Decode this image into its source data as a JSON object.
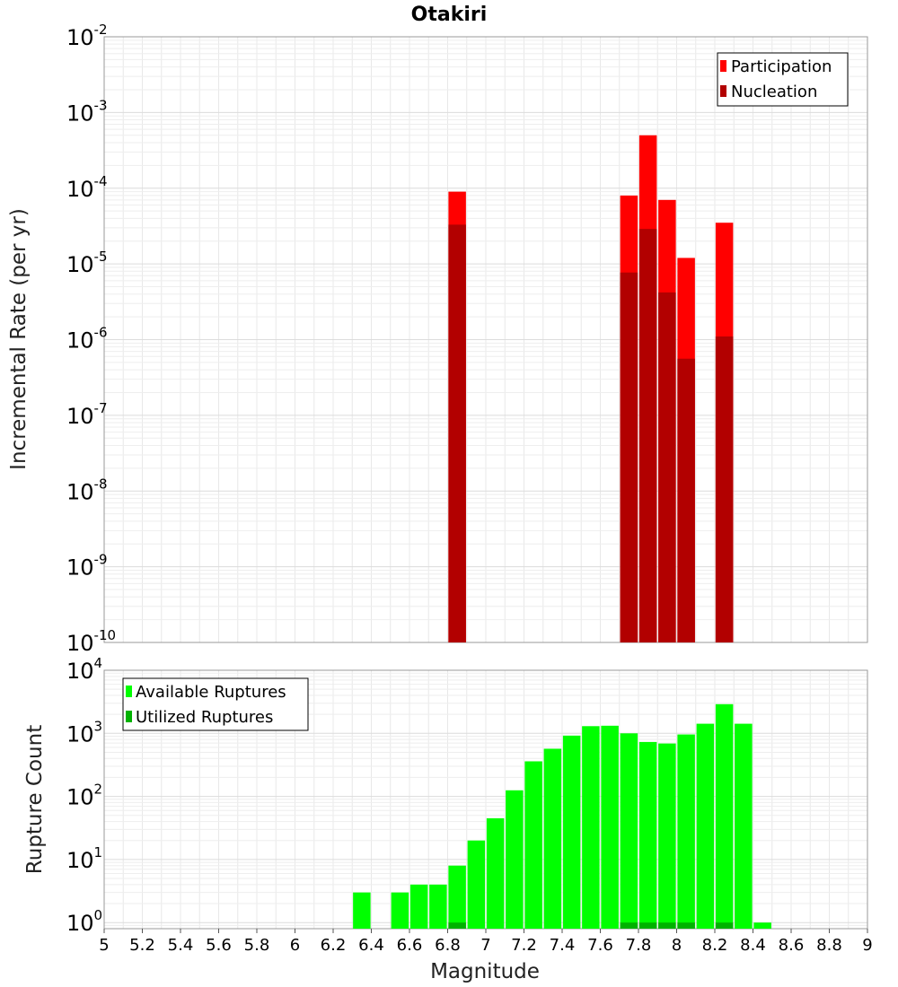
{
  "chart_data": [
    {
      "type": "bar",
      "title": "Otakiri",
      "xlabel": "",
      "ylabel": "Incremental Rate (per yr)",
      "yscale": "log",
      "ylim": [
        1e-10,
        0.01
      ],
      "xlim": [
        5,
        9
      ],
      "ytick_bases": [
        "10",
        "10",
        "10",
        "10",
        "10",
        "10",
        "10",
        "10",
        "10"
      ],
      "ytick_exponents": [
        "-2",
        "-3",
        "-4",
        "-5",
        "-6",
        "-7",
        "-8",
        "-9",
        "-10"
      ],
      "ytick_values": [
        0.01,
        0.001,
        0.0001,
        1e-05,
        1e-06,
        1e-07,
        1e-08,
        1e-09,
        1e-10
      ],
      "grid": true,
      "legend_position": "top-right",
      "series": [
        {
          "name": "Participation",
          "color": "#ff0000",
          "x": [
            6.85,
            7.75,
            7.85,
            7.95,
            8.05,
            8.25
          ],
          "values": [
            9e-05,
            8e-05,
            0.0005,
            7e-05,
            1.2e-05,
            3.5e-05
          ]
        },
        {
          "name": "Nucleation",
          "color": "#b20000",
          "x": [
            6.85,
            7.75,
            7.85,
            7.95,
            8.05,
            8.25
          ],
          "values": [
            3.3e-05,
            7.7e-06,
            2.9e-05,
            4.2e-06,
            5.6e-07,
            1.1e-06
          ]
        }
      ]
    },
    {
      "type": "bar",
      "title": "",
      "xlabel": "Magnitude",
      "ylabel": "Rupture Count",
      "yscale": "log",
      "ylim": [
        0.8,
        10000
      ],
      "xlim": [
        5,
        9
      ],
      "xticks": [
        "5",
        "5.2",
        "5.4",
        "5.6",
        "5.8",
        "6",
        "6.2",
        "6.4",
        "6.6",
        "6.8",
        "7",
        "7.2",
        "7.4",
        "7.6",
        "7.8",
        "8",
        "8.2",
        "8.4",
        "8.6",
        "8.8",
        "9"
      ],
      "ytick_bases": [
        "10",
        "10",
        "10",
        "10",
        "10"
      ],
      "ytick_exponents": [
        "4",
        "3",
        "2",
        "1",
        "0"
      ],
      "ytick_values": [
        10000,
        1000,
        100,
        10,
        1
      ],
      "grid": true,
      "legend_position": "top-left",
      "series": [
        {
          "name": "Available Ruptures",
          "color": "#00ff00",
          "x": [
            6.35,
            6.55,
            6.65,
            6.75,
            6.85,
            6.95,
            7.05,
            7.15,
            7.25,
            7.35,
            7.45,
            7.55,
            7.65,
            7.75,
            7.85,
            7.95,
            8.05,
            8.15,
            8.25,
            8.35,
            8.45
          ],
          "values": [
            3,
            3,
            4,
            4,
            8,
            20,
            45,
            125,
            360,
            570,
            920,
            1300,
            1320,
            1000,
            730,
            690,
            960,
            1420,
            2900,
            1420,
            1
          ]
        },
        {
          "name": "Utilized Ruptures",
          "color": "#00b200",
          "x": [
            6.85,
            7.75,
            7.85,
            7.95,
            8.05,
            8.25
          ],
          "values": [
            1,
            1,
            1,
            1,
            1,
            1
          ]
        }
      ]
    }
  ]
}
